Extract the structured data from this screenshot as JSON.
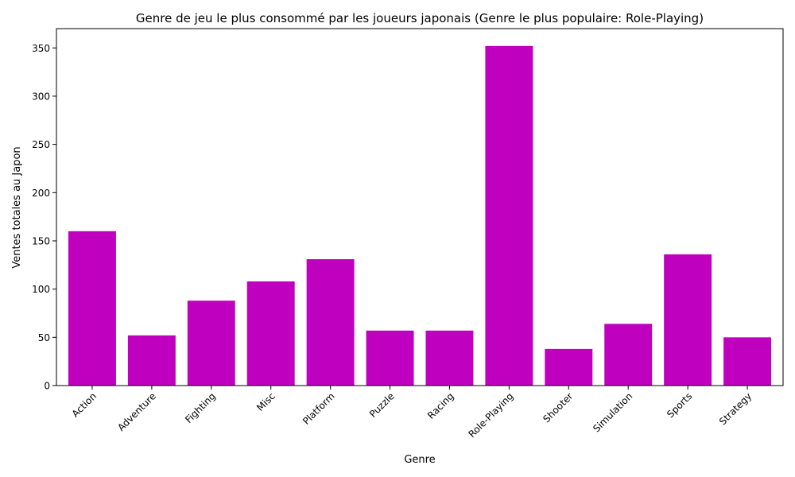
{
  "chart_data": {
    "type": "bar",
    "title": "Genre de jeu le plus consommé par les joueurs japonais (Genre le plus populaire: Role-Playing)",
    "xlabel": "Genre",
    "ylabel": "Ventes totales au Japon",
    "categories": [
      "Action",
      "Adventure",
      "Fighting",
      "Misc",
      "Platform",
      "Puzzle",
      "Racing",
      "Role-Playing",
      "Shooter",
      "Simulation",
      "Sports",
      "Strategy"
    ],
    "values": [
      160,
      52,
      88,
      108,
      131,
      57,
      57,
      352,
      38,
      64,
      136,
      50
    ],
    "ylim": [
      0,
      370
    ],
    "yticks": [
      0,
      50,
      100,
      150,
      200,
      250,
      300,
      350
    ],
    "bar_color": "#bf00bf",
    "grid": false,
    "legend": "none"
  }
}
